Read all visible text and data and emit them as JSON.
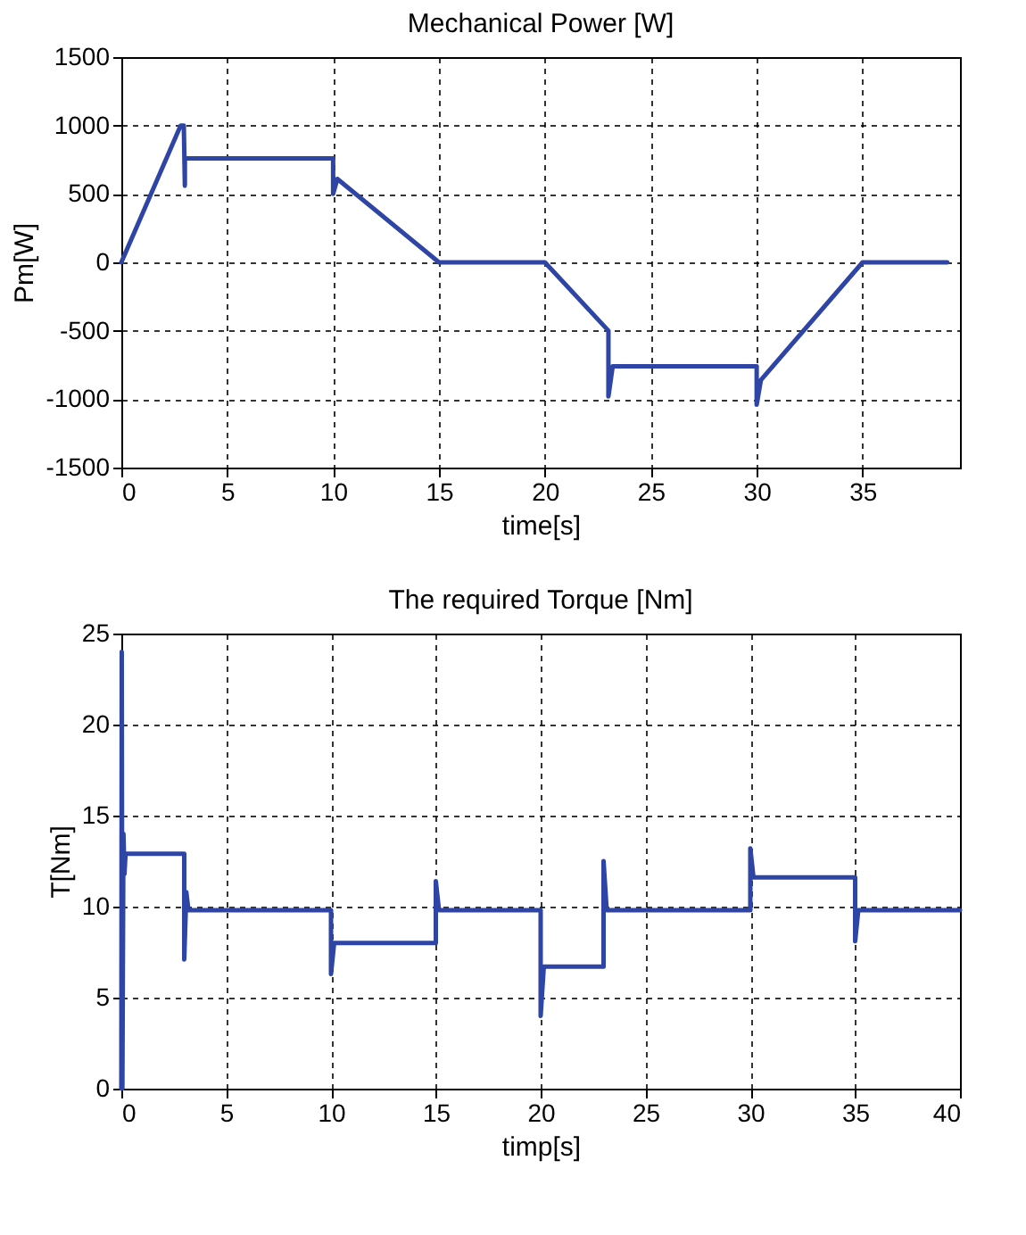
{
  "chart_data": [
    {
      "type": "line",
      "title": "Mechanical Power [W]",
      "xlabel": "time[s]",
      "ylabel": "Pm[W]",
      "xlim": [
        0,
        39.6
      ],
      "ylim": [
        -1500,
        1500
      ],
      "xticks": [
        0,
        5,
        10,
        15,
        20,
        25,
        30,
        35
      ],
      "yticks": [
        -1500,
        -1000,
        -500,
        0,
        500,
        1000,
        1500
      ],
      "grid": true,
      "line_style": "solid",
      "marker": "none",
      "series": [
        {
          "color": "#2e45a5",
          "x": [
            0,
            2.8,
            2.95,
            3,
            3,
            3.1,
            10,
            10,
            10.2,
            15,
            20,
            23,
            23,
            23.2,
            30,
            30,
            30.2,
            35,
            39
          ],
          "values": [
            0,
            1000,
            1000,
            560,
            760,
            760,
            760,
            500,
            610,
            0,
            0,
            -500,
            -980,
            -760,
            -760,
            -1040,
            -860,
            0,
            0
          ]
        }
      ]
    },
    {
      "type": "line",
      "title": "The required Torque [Nm]",
      "xlabel": "timp[s]",
      "ylabel": "T[Nm]",
      "xlim": [
        0,
        40
      ],
      "ylim": [
        0,
        25
      ],
      "xticks": [
        0,
        5,
        10,
        15,
        20,
        25,
        30,
        35,
        40
      ],
      "yticks": [
        0,
        5,
        10,
        15,
        20,
        25
      ],
      "grid": true,
      "line_style": "solid",
      "marker": "none",
      "series": [
        {
          "color": "#2e45a5",
          "x": [
            0,
            0.02,
            0.05,
            0.1,
            0.15,
            0.2,
            3,
            3,
            3.1,
            3.2,
            10,
            10,
            10.15,
            15,
            15,
            15.15,
            20,
            20,
            20.15,
            23,
            23,
            23.15,
            30,
            30,
            30.15,
            35,
            35,
            35.15,
            40
          ],
          "values": [
            0,
            24,
            0,
            14,
            11.8,
            12.9,
            12.9,
            7.1,
            10.8,
            9.8,
            9.8,
            6.3,
            8,
            8,
            11.4,
            9.8,
            9.8,
            4,
            6.7,
            6.7,
            12.5,
            9.8,
            9.8,
            13.2,
            11.6,
            11.6,
            8.1,
            9.8,
            9.8
          ]
        }
      ]
    }
  ]
}
